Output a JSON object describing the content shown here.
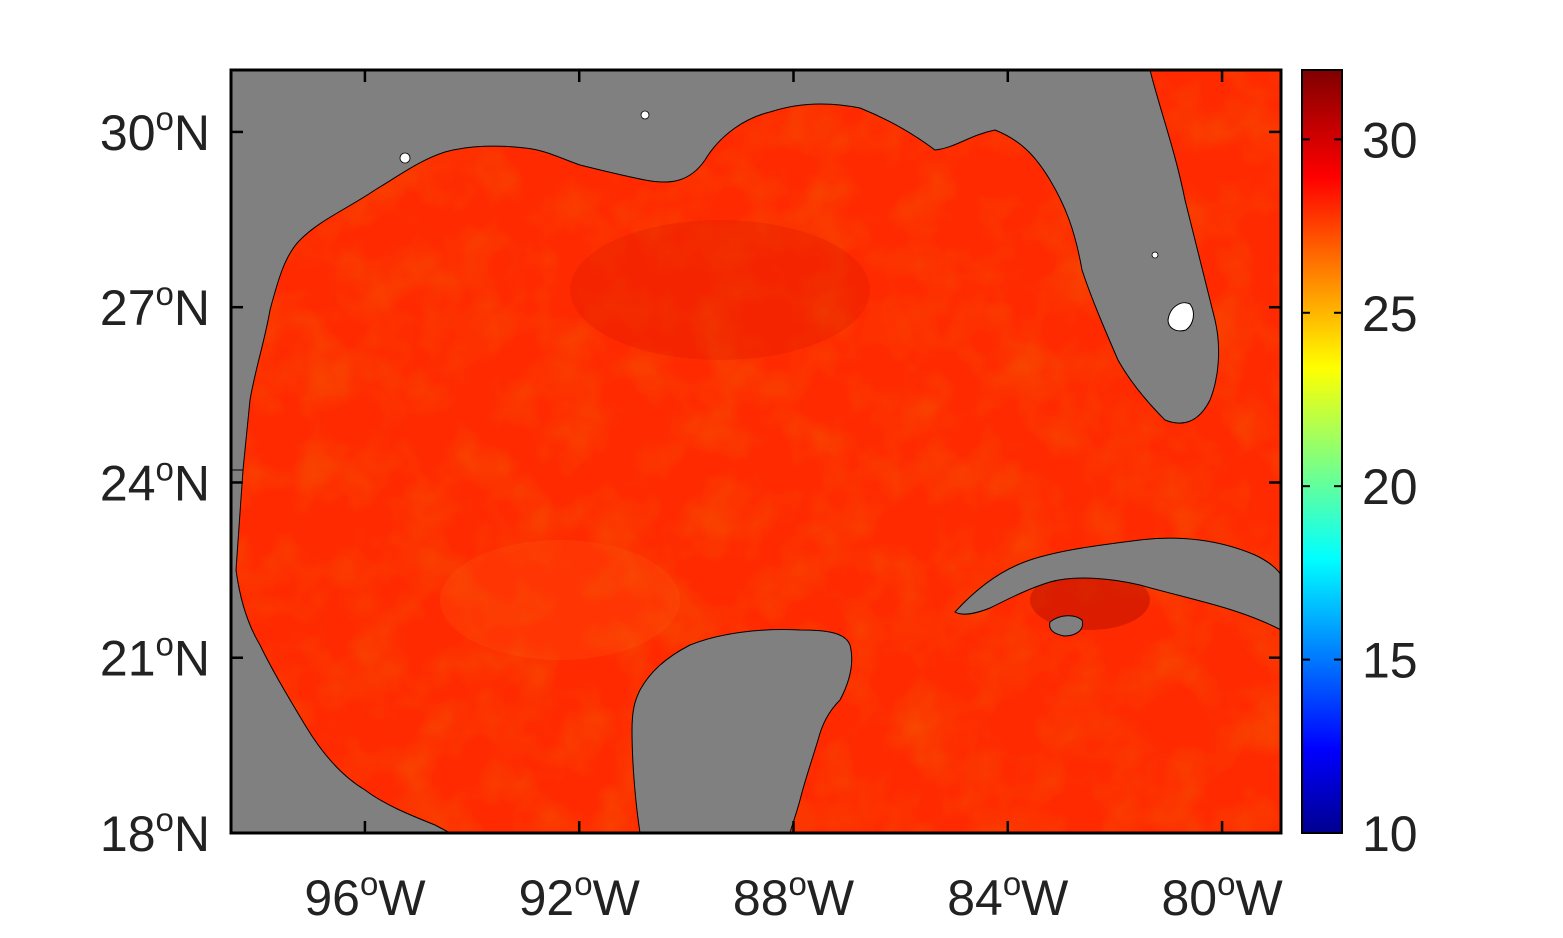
{
  "map": {
    "type": "sea-surface-temperature-map",
    "region": "Gulf of Mexico",
    "land_color": "#808080",
    "ocean_dominant_color": "#ff2a00",
    "lat_ticks": [
      {
        "value": 30,
        "deg": "30",
        "sup": "o",
        "hemi": "N"
      },
      {
        "value": 27,
        "deg": "27",
        "sup": "o",
        "hemi": "N"
      },
      {
        "value": 24,
        "deg": "24",
        "sup": "o",
        "hemi": "N"
      },
      {
        "value": 21,
        "deg": "21",
        "sup": "o",
        "hemi": "N"
      },
      {
        "value": 18,
        "deg": "18",
        "sup": "o",
        "hemi": "N"
      }
    ],
    "lon_ticks": [
      {
        "value": -96,
        "deg": "96",
        "sup": "o",
        "hemi": "W"
      },
      {
        "value": -92,
        "deg": "92",
        "sup": "o",
        "hemi": "W"
      },
      {
        "value": -88,
        "deg": "88",
        "sup": "o",
        "hemi": "W"
      },
      {
        "value": -84,
        "deg": "84",
        "sup": "o",
        "hemi": "W"
      },
      {
        "value": -80,
        "deg": "80",
        "sup": "o",
        "hemi": "W"
      }
    ]
  },
  "colorbar": {
    "colormap": "jet",
    "range": [
      10,
      32
    ],
    "ticks": [
      {
        "value": 30,
        "label": "30"
      },
      {
        "value": 25,
        "label": "25"
      },
      {
        "value": 20,
        "label": "20"
      },
      {
        "value": 15,
        "label": "15"
      },
      {
        "value": 10,
        "label": "10"
      }
    ]
  }
}
